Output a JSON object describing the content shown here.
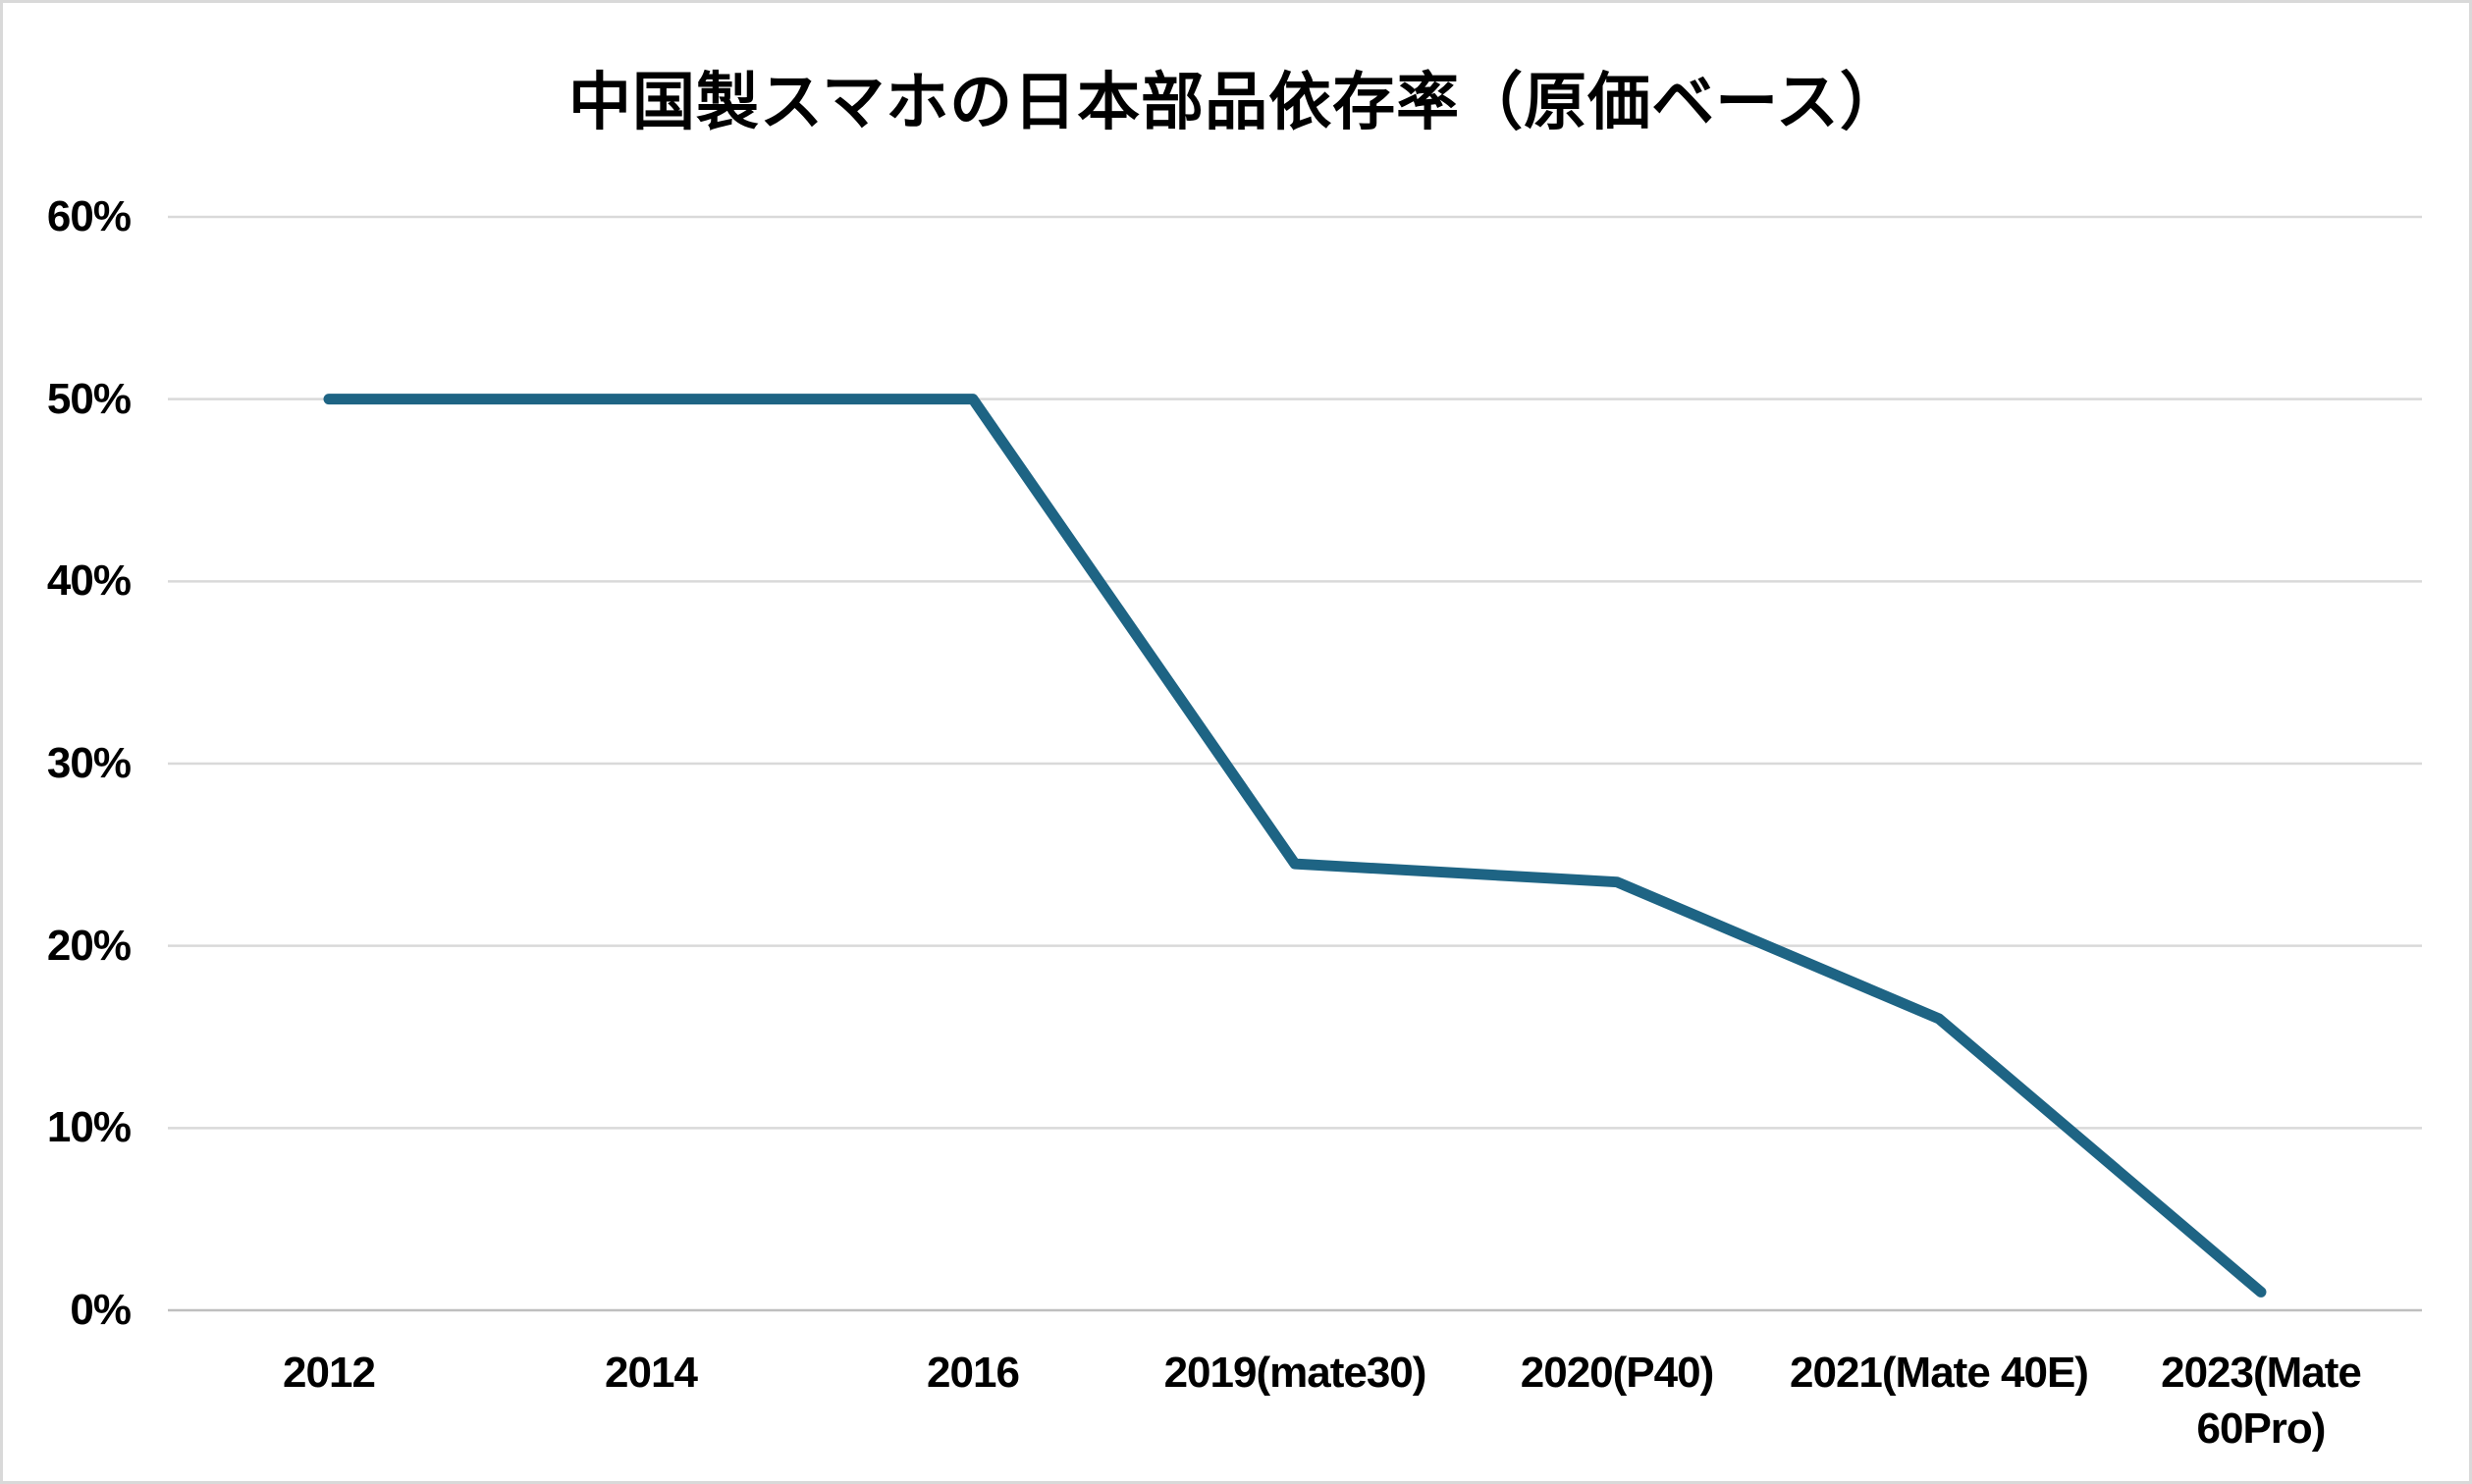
{
  "title": "中国製スマホの日本部品依存率（原価ベース）",
  "chart_data": {
    "type": "line",
    "title": "中国製スマホの日本部品依存率（原価ベース）",
    "categories": [
      "2012",
      "2014",
      "2016",
      "2019(mate30)",
      "2020(P40)",
      "2021(Mate 40E)",
      "2023(Mate 60Pro)"
    ],
    "values": [
      50,
      50,
      50,
      24.5,
      23.5,
      16,
      1
    ],
    "xlabel": "",
    "ylabel": "",
    "ylim": [
      0,
      60
    ],
    "ytick_step": 10,
    "ytick_labels": [
      "0%",
      "10%",
      "20%",
      "30%",
      "40%",
      "50%",
      "60%"
    ],
    "grid": "horizontal",
    "legend": "none",
    "colors": {
      "line": "#1E6484",
      "gridline": "#D9D9D9",
      "axis_line": "#BFBFBF",
      "label": "#000000",
      "background": "#FFFFFF",
      "border": "#D9D9D9"
    }
  }
}
